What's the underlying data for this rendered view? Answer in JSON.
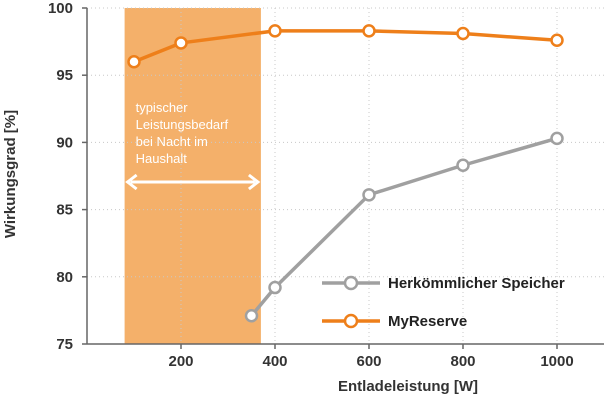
{
  "chart_data": {
    "type": "line",
    "xlabel": "Entladeleistung [W]",
    "ylabel": "Wirkungsgrad [%]",
    "xlim": [
      0,
      1100
    ],
    "ylim": [
      75,
      100
    ],
    "xticks": [
      200,
      400,
      600,
      800,
      1000
    ],
    "yticks": [
      75,
      80,
      85,
      90,
      95,
      100
    ],
    "grid": true,
    "legend_position": "bottom-right",
    "series": [
      {
        "name": "Herkömmlicher Speicher",
        "color": "#a0a0a0",
        "x": [
          350,
          400,
          600,
          800,
          1000
        ],
        "y": [
          77.1,
          79.2,
          86.1,
          88.3,
          90.3
        ]
      },
      {
        "name": "MyReserve",
        "color": "#ee7f1a",
        "x": [
          100,
          200,
          400,
          600,
          800,
          1000
        ],
        "y": [
          96.0,
          97.4,
          98.3,
          98.3,
          98.1,
          97.6
        ]
      }
    ],
    "highlight_band": {
      "x_range": [
        80,
        370
      ],
      "color": "#f4b06a",
      "lines": [
        "typischer",
        "Leistungsbedarf",
        "bei Nacht im",
        "Haushalt"
      ]
    }
  }
}
